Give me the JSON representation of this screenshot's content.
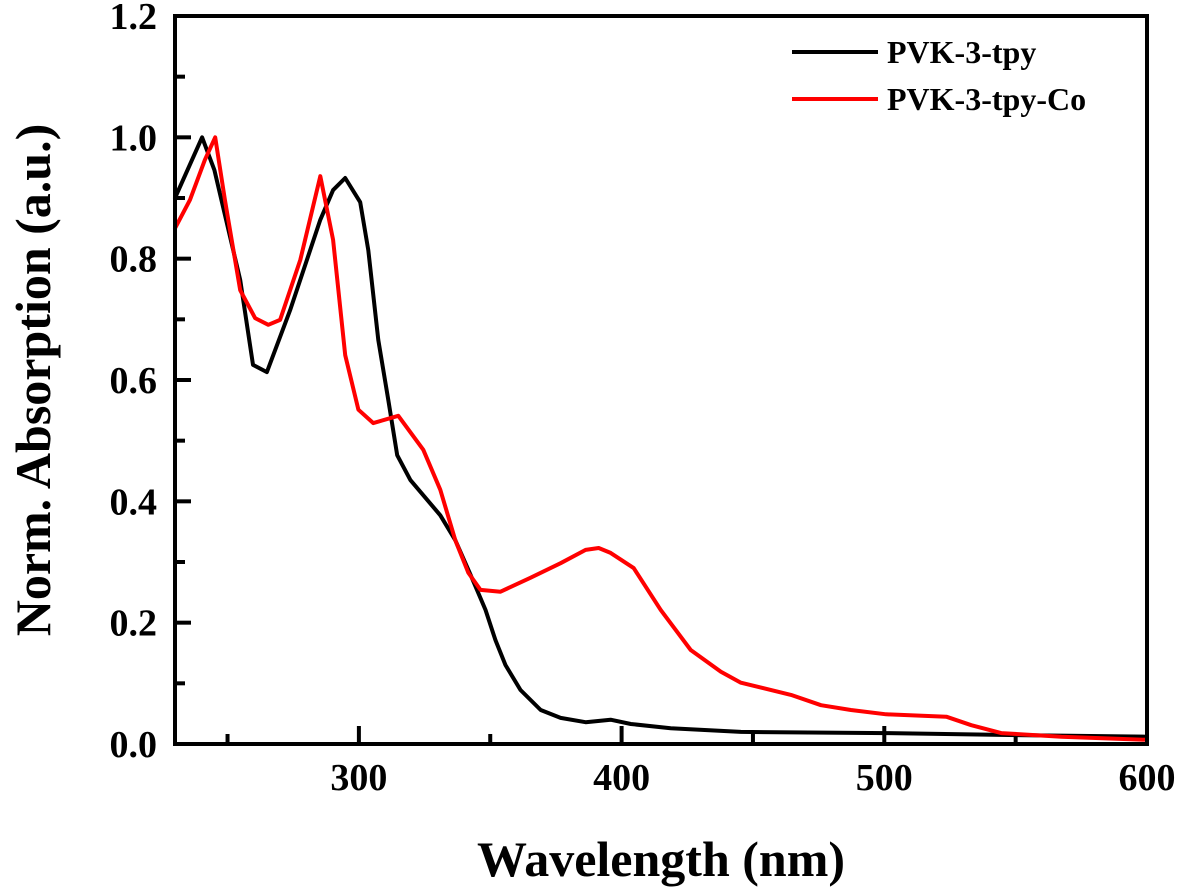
{
  "chart_data": {
    "type": "line",
    "title": "",
    "xlabel": "Wavelength (nm)",
    "ylabel": "Norm. Absorption (a.u.)",
    "xlim": [
      230,
      600
    ],
    "ylim": [
      0.0,
      1.2
    ],
    "xticks": [
      300,
      400,
      500,
      600
    ],
    "xtick_labels": [
      "300",
      "400",
      "500",
      "600"
    ],
    "x_minor_ticks": [
      250,
      350,
      450,
      550
    ],
    "yticks": [
      0.0,
      0.2,
      0.4,
      0.6,
      0.8,
      1.0,
      1.2
    ],
    "ytick_labels": [
      "0.0",
      "0.2",
      "0.4",
      "0.6",
      "0.8",
      "1.0",
      "1.2"
    ],
    "y_minor_ticks": [
      0.1,
      0.3,
      0.5,
      0.7,
      0.9,
      1.1
    ],
    "grid": false,
    "legend_position": "top-right",
    "series": [
      {
        "name": "PVK-3-tpy",
        "color": "#000000",
        "x": [
          230,
          240.3,
          245,
          254.8,
          259.7,
          265,
          273.8,
          285.3,
          290.2,
          294.8,
          300.5,
          303.6,
          307.4,
          311.2,
          314.6,
          319.6,
          331,
          336.7,
          342.5,
          348.2,
          352,
          355.8,
          361.5,
          369.2,
          376.8,
          386.3,
          395.8,
          403.5,
          418.7,
          445.4,
          500.7,
          544.5,
          600
        ],
        "y": [
          0.9,
          1.0,
          0.946,
          0.765,
          0.625,
          0.613,
          0.715,
          0.864,
          0.913,
          0.933,
          0.893,
          0.814,
          0.666,
          0.567,
          0.476,
          0.435,
          0.377,
          0.336,
          0.279,
          0.221,
          0.171,
          0.13,
          0.089,
          0.056,
          0.043,
          0.036,
          0.04,
          0.033,
          0.026,
          0.02,
          0.018,
          0.015,
          0.012
        ]
      },
      {
        "name": "PVK-3-tpy-Co",
        "color": "#ff0000",
        "x": [
          230,
          235.7,
          241.4,
          245.3,
          249,
          254.8,
          260.5,
          265.5,
          270,
          277.7,
          285.3,
          290.2,
          294.8,
          299.8,
          305.5,
          315,
          324.5,
          331,
          336.7,
          341.7,
          346.3,
          353.9,
          365.3,
          376.8,
          386.3,
          391.3,
          395.8,
          404.6,
          414.9,
          426.3,
          437.8,
          445.4,
          464.5,
          475.9,
          487.3,
          500.7,
          523.6,
          533.1,
          544.5,
          567.4,
          600
        ],
        "y": [
          0.85,
          0.897,
          0.963,
          1.0,
          0.897,
          0.748,
          0.702,
          0.691,
          0.699,
          0.798,
          0.936,
          0.831,
          0.641,
          0.551,
          0.529,
          0.541,
          0.485,
          0.419,
          0.336,
          0.282,
          0.254,
          0.251,
          0.274,
          0.298,
          0.32,
          0.323,
          0.315,
          0.29,
          0.221,
          0.155,
          0.119,
          0.101,
          0.081,
          0.064,
          0.056,
          0.049,
          0.045,
          0.031,
          0.018,
          0.012,
          0.007
        ]
      }
    ]
  }
}
